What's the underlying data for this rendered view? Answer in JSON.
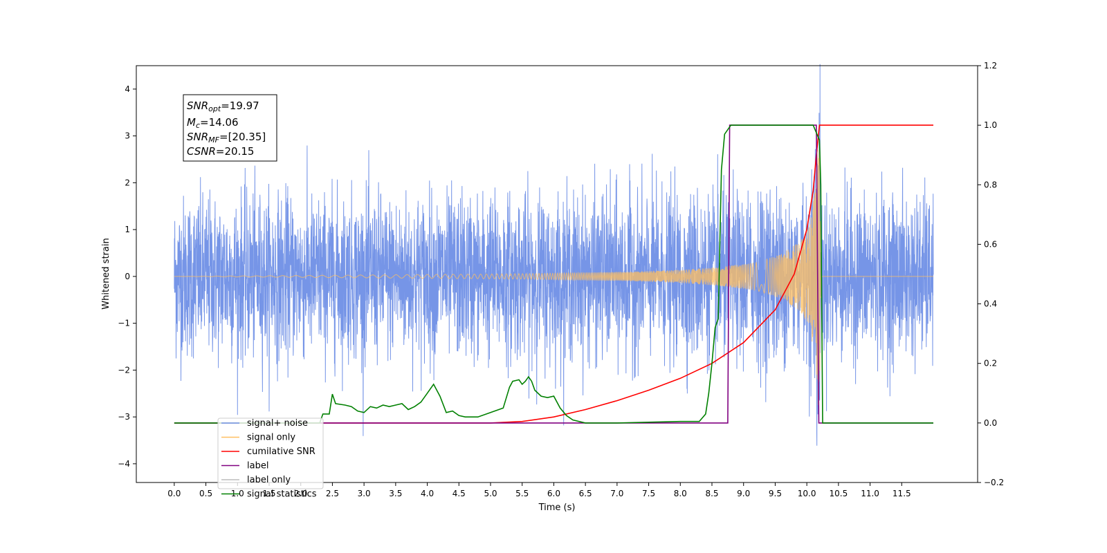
{
  "chart_data": {
    "type": "line",
    "xlabel": "Time (s)",
    "ylabel": "Whitened strain",
    "xlim": [
      -0.6,
      12.7
    ],
    "ylim": [
      -4.4,
      4.5
    ],
    "y2lim": [
      -0.2,
      1.2
    ],
    "x_ticks": [
      "0.0",
      "0.5",
      "1.0",
      "1.5",
      "2.0",
      "2.5",
      "3.0",
      "3.5",
      "4.0",
      "4.5",
      "5.0",
      "5.5",
      "6.0",
      "6.5",
      "7.0",
      "7.5",
      "8.0",
      "8.5",
      "9.0",
      "9.5",
      "10.0",
      "10.5",
      "11.0",
      "11.5"
    ],
    "y_ticks": [
      "−4",
      "−3",
      "−2",
      "−1",
      "0",
      "1",
      "2",
      "3",
      "4"
    ],
    "y2_ticks": [
      "−0.2",
      "0.0",
      "0.2",
      "0.4",
      "0.6",
      "0.8",
      "1.0",
      "1.2"
    ],
    "grid": false,
    "legend_position": "lower-left",
    "annotation": {
      "snr_opt": {
        "main": "SNR",
        "sub": "opt",
        "value": "=19.97"
      },
      "mc": {
        "main": "M",
        "sub": "c",
        "value": "=14.06"
      },
      "snr_mf": {
        "main": "SNR",
        "sub": "MF",
        "value": "=[20.35]"
      },
      "csnr": {
        "main": "CSNR",
        "sub": "",
        "value": "=20.15"
      }
    },
    "series": [
      {
        "name": "signal+ noise",
        "color": "#6f8fe6",
        "axis": "left",
        "description_kind": "noise",
        "sigma": 0.85,
        "max_abs": 4.1,
        "x_range": [
          0.0,
          12.0
        ]
      },
      {
        "name": "signal only",
        "color": "#ffbf60",
        "axis": "left",
        "x": [
          0.0,
          4.8,
          5.6,
          6.4,
          7.2,
          8.0,
          8.6,
          9.2,
          9.6,
          9.9,
          10.05,
          10.15,
          10.2,
          10.22,
          12.0
        ],
        "envelope": [
          0.0,
          0.05,
          0.06,
          0.08,
          0.1,
          0.14,
          0.2,
          0.3,
          0.48,
          0.75,
          1.1,
          2.0,
          3.6,
          0.0,
          0.0
        ]
      },
      {
        "name": "cumilative SNR",
        "color": "#ff0000",
        "axis": "right",
        "x": [
          0.0,
          5.0,
          5.5,
          6.0,
          6.5,
          7.0,
          7.5,
          8.0,
          8.5,
          9.0,
          9.5,
          9.8,
          10.0,
          10.1,
          10.15,
          10.2,
          10.21,
          12.0
        ],
        "y": [
          0.0,
          0.0,
          0.005,
          0.02,
          0.045,
          0.075,
          0.11,
          0.15,
          0.2,
          0.27,
          0.38,
          0.5,
          0.65,
          0.78,
          0.9,
          1.0,
          1.0,
          1.0
        ]
      },
      {
        "name": "label",
        "color": "#800080",
        "axis": "right",
        "x": [
          0.0,
          8.75,
          8.78,
          10.15,
          10.19,
          12.0
        ],
        "y": [
          0.0,
          0.0,
          1.0,
          1.0,
          0.0,
          0.0
        ]
      },
      {
        "name": "label only",
        "color": "#bbbbbb",
        "axis": "right",
        "hidden": true
      },
      {
        "name": "signal statistics",
        "color": "#008000",
        "axis": "right",
        "x": [
          0.0,
          2.3,
          2.35,
          2.45,
          2.5,
          2.55,
          2.7,
          2.8,
          2.9,
          3.0,
          3.1,
          3.2,
          3.3,
          3.4,
          3.5,
          3.6,
          3.7,
          3.8,
          3.9,
          4.0,
          4.1,
          4.2,
          4.3,
          4.4,
          4.5,
          4.6,
          4.8,
          5.0,
          5.2,
          5.3,
          5.35,
          5.45,
          5.5,
          5.55,
          5.6,
          5.65,
          5.7,
          5.8,
          5.9,
          6.0,
          6.1,
          6.2,
          6.3,
          6.5,
          7.0,
          8.0,
          8.3,
          8.4,
          8.45,
          8.5,
          8.55,
          8.6,
          8.65,
          8.7,
          8.8,
          9.0,
          10.1,
          10.2,
          10.22,
          10.25,
          12.0
        ],
        "y": [
          0.0,
          0.0,
          0.03,
          0.03,
          0.097,
          0.065,
          0.06,
          0.055,
          0.04,
          0.035,
          0.055,
          0.05,
          0.06,
          0.055,
          0.06,
          0.065,
          0.045,
          0.055,
          0.07,
          0.1,
          0.13,
          0.09,
          0.035,
          0.04,
          0.025,
          0.02,
          0.02,
          0.035,
          0.05,
          0.12,
          0.14,
          0.145,
          0.13,
          0.14,
          0.155,
          0.14,
          0.11,
          0.09,
          0.085,
          0.09,
          0.05,
          0.025,
          0.01,
          0.0,
          0.0,
          0.005,
          0.005,
          0.03,
          0.1,
          0.2,
          0.32,
          0.35,
          0.85,
          0.97,
          1.0,
          1.0,
          1.0,
          0.95,
          0.8,
          0.0,
          0.0
        ]
      }
    ]
  }
}
